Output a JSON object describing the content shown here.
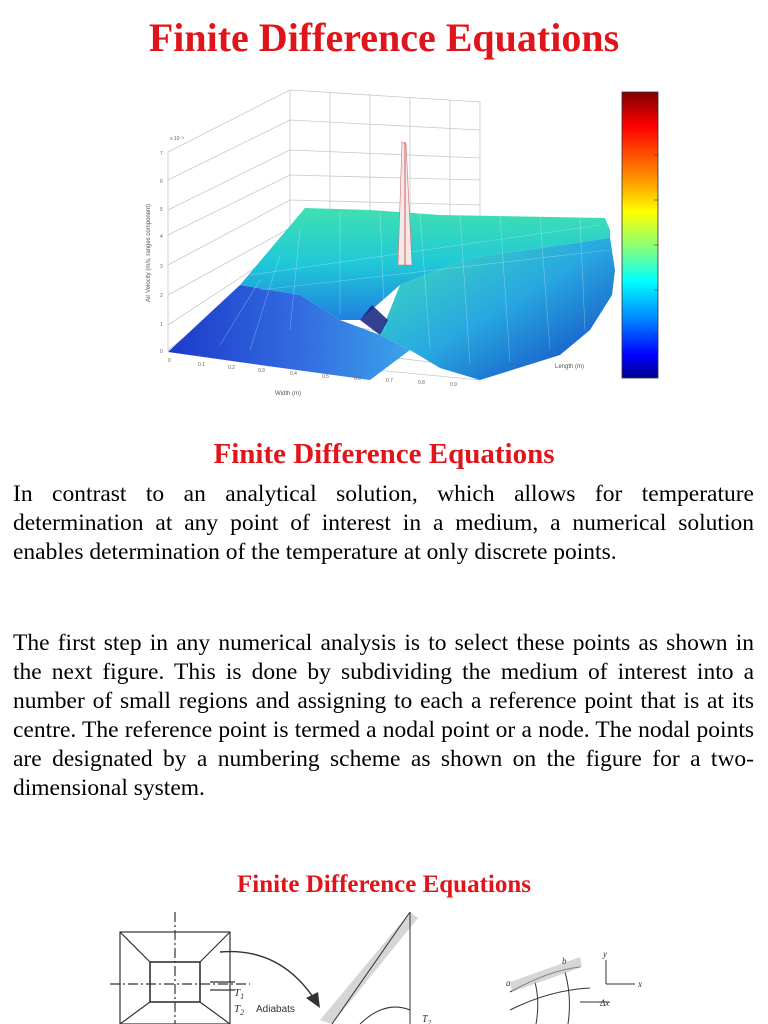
{
  "page": {
    "main_title": "Finite Difference Equations",
    "section_title_1": "Finite Difference Equations",
    "section_title_2": "Finite Difference Equations"
  },
  "paragraphs": [
    "In contrast to an analytical solution, which allows for temperature determination at any point of interest in a medium, a numerical solution enables determination of the temperature at only discrete points.",
    "The first step in any numerical analysis is to select these points as shown in the next figure. This is done by subdividing the medium of interest into a number of small regions and assigning to each a reference point that is at its centre. The reference point is termed a nodal point or a node. The nodal points are designated by a numbering scheme as shown on the figure for a two-dimensional system."
  ],
  "surface_plot": {
    "zlabel": "Air Velocity (m/s, ranges component)",
    "xlabel": "Width (m)",
    "ylabel": "Length (m)",
    "scale_note": "x 10⁻³"
  },
  "bottom_figure": {
    "t1": "T",
    "t1_sub": "1",
    "t2": "T",
    "t2_sub": "2",
    "adiabats": "Adiabats",
    "t2b": "T",
    "t2b_sub": "2",
    "label_a": "a",
    "label_b": "b",
    "label_y": "y",
    "label_x": "x",
    "label_dx": "Δx"
  },
  "colors": {
    "title_red": "#e0151b",
    "colorbar": [
      "#800000",
      "#ff0000",
      "#ff8000",
      "#ffff00",
      "#80ff80",
      "#00ffff",
      "#0080ff",
      "#0000ff",
      "#000080"
    ]
  }
}
